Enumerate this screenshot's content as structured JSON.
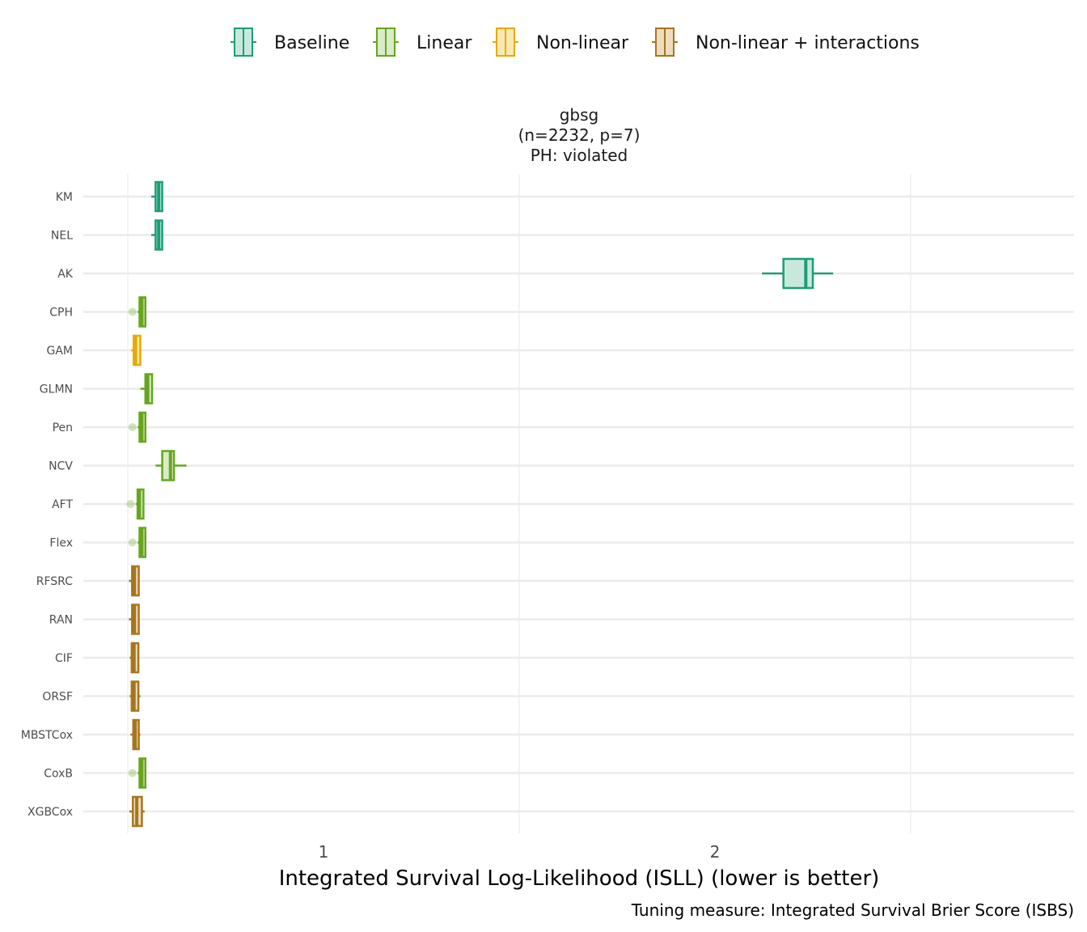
{
  "legend": {
    "items": [
      {
        "label": "Baseline",
        "color": "#1b9e77",
        "fill": "#c9e8dc"
      },
      {
        "label": "Linear",
        "color": "#66a61e",
        "fill": "#d9ebc7"
      },
      {
        "label": "Non-linear",
        "color": "#e6ab02",
        "fill": "#f9e8b3"
      },
      {
        "label": "Non-linear + interactions",
        "color": "#a6761d",
        "fill": "#eddcc0"
      }
    ]
  },
  "facet": {
    "title_lines": [
      "gbsg",
      "(n=2232, p=7)",
      "PH: violated"
    ]
  },
  "caption": "Tuning measure: Integrated Survival Brier Score (ISBS)",
  "chart_data": {
    "type": "boxplot",
    "orientation": "horizontal",
    "xlabel": "Integrated Survival Log-Likelihood (ISLL) (lower is better)",
    "ylabel": "",
    "xlim": [
      0.5,
      2.95
    ],
    "x_major_ticks": [
      1,
      2
    ],
    "x_minor_gridlines": [
      0.5,
      1.5,
      2.5
    ],
    "grid": true,
    "legend_position": "top",
    "categories": [
      "KM",
      "NEL",
      "AK",
      "CPH",
      "GAM",
      "GLMN",
      "Pen",
      "NCV",
      "AFT",
      "Flex",
      "RFSRC",
      "RAN",
      "CIF",
      "ORSF",
      "MBSTCox",
      "CoxB",
      "XGBCox"
    ],
    "boxes": [
      {
        "learner": "KM",
        "group": "Baseline",
        "whisker_low": 0.56,
        "q1": 0.571,
        "median": 0.579,
        "q3": 0.588,
        "whisker_high": 0.588,
        "outliers": []
      },
      {
        "learner": "NEL",
        "group": "Baseline",
        "whisker_low": 0.56,
        "q1": 0.571,
        "median": 0.579,
        "q3": 0.588,
        "whisker_high": 0.588,
        "outliers": []
      },
      {
        "learner": "AK",
        "group": "Baseline",
        "whisker_low": 2.12,
        "q1": 2.175,
        "median": 2.232,
        "q3": 2.25,
        "whisker_high": 2.302,
        "outliers": []
      },
      {
        "learner": "CPH",
        "group": "Linear",
        "whisker_low": 0.525,
        "q1": 0.53,
        "median": 0.536,
        "q3": 0.545,
        "whisker_high": 0.547,
        "outliers": [
          0.512
        ]
      },
      {
        "learner": "GAM",
        "group": "Non-linear",
        "whisker_low": 0.509,
        "q1": 0.515,
        "median": 0.52,
        "q3": 0.532,
        "whisker_high": 0.535,
        "outliers": []
      },
      {
        "learner": "GLMN",
        "group": "Linear",
        "whisker_low": 0.532,
        "q1": 0.545,
        "median": 0.551,
        "q3": 0.562,
        "whisker_high": 0.562,
        "outliers": []
      },
      {
        "learner": "Pen",
        "group": "Linear",
        "whisker_low": 0.525,
        "q1": 0.53,
        "median": 0.536,
        "q3": 0.545,
        "whisker_high": 0.547,
        "outliers": [
          0.512
        ]
      },
      {
        "learner": "NCV",
        "group": "Linear",
        "whisker_low": 0.571,
        "q1": 0.588,
        "median": 0.609,
        "q3": 0.618,
        "whisker_high": 0.65,
        "outliers": []
      },
      {
        "learner": "AFT",
        "group": "Linear",
        "whisker_low": 0.52,
        "q1": 0.525,
        "median": 0.53,
        "q3": 0.54,
        "whisker_high": 0.542,
        "outliers": [
          0.507
        ]
      },
      {
        "learner": "Flex",
        "group": "Linear",
        "whisker_low": 0.525,
        "q1": 0.53,
        "median": 0.536,
        "q3": 0.545,
        "whisker_high": 0.547,
        "outliers": [
          0.512
        ]
      },
      {
        "learner": "RFSRC",
        "group": "Non-linear + interactions",
        "whisker_low": 0.503,
        "q1": 0.511,
        "median": 0.517,
        "q3": 0.528,
        "whisker_high": 0.53,
        "outliers": []
      },
      {
        "learner": "RAN",
        "group": "Non-linear + interactions",
        "whisker_low": 0.503,
        "q1": 0.511,
        "median": 0.517,
        "q3": 0.528,
        "whisker_high": 0.53,
        "outliers": []
      },
      {
        "learner": "CIF",
        "group": "Non-linear + interactions",
        "whisker_low": 0.505,
        "q1": 0.51,
        "median": 0.516,
        "q3": 0.527,
        "whisker_high": 0.529,
        "outliers": []
      },
      {
        "learner": "ORSF",
        "group": "Non-linear + interactions",
        "whisker_low": 0.505,
        "q1": 0.51,
        "median": 0.516,
        "q3": 0.527,
        "whisker_high": 0.532,
        "outliers": []
      },
      {
        "learner": "MBSTCox",
        "group": "Non-linear + interactions",
        "whisker_low": 0.507,
        "q1": 0.514,
        "median": 0.519,
        "q3": 0.528,
        "whisker_high": 0.532,
        "outliers": []
      },
      {
        "learner": "CoxB",
        "group": "Linear",
        "whisker_low": 0.525,
        "q1": 0.53,
        "median": 0.536,
        "q3": 0.545,
        "whisker_high": 0.547,
        "outliers": [
          0.512
        ]
      },
      {
        "learner": "XGBCox",
        "group": "Non-linear + interactions",
        "whisker_low": 0.504,
        "q1": 0.513,
        "median": 0.523,
        "q3": 0.536,
        "whisker_high": 0.543,
        "outliers": []
      }
    ]
  }
}
